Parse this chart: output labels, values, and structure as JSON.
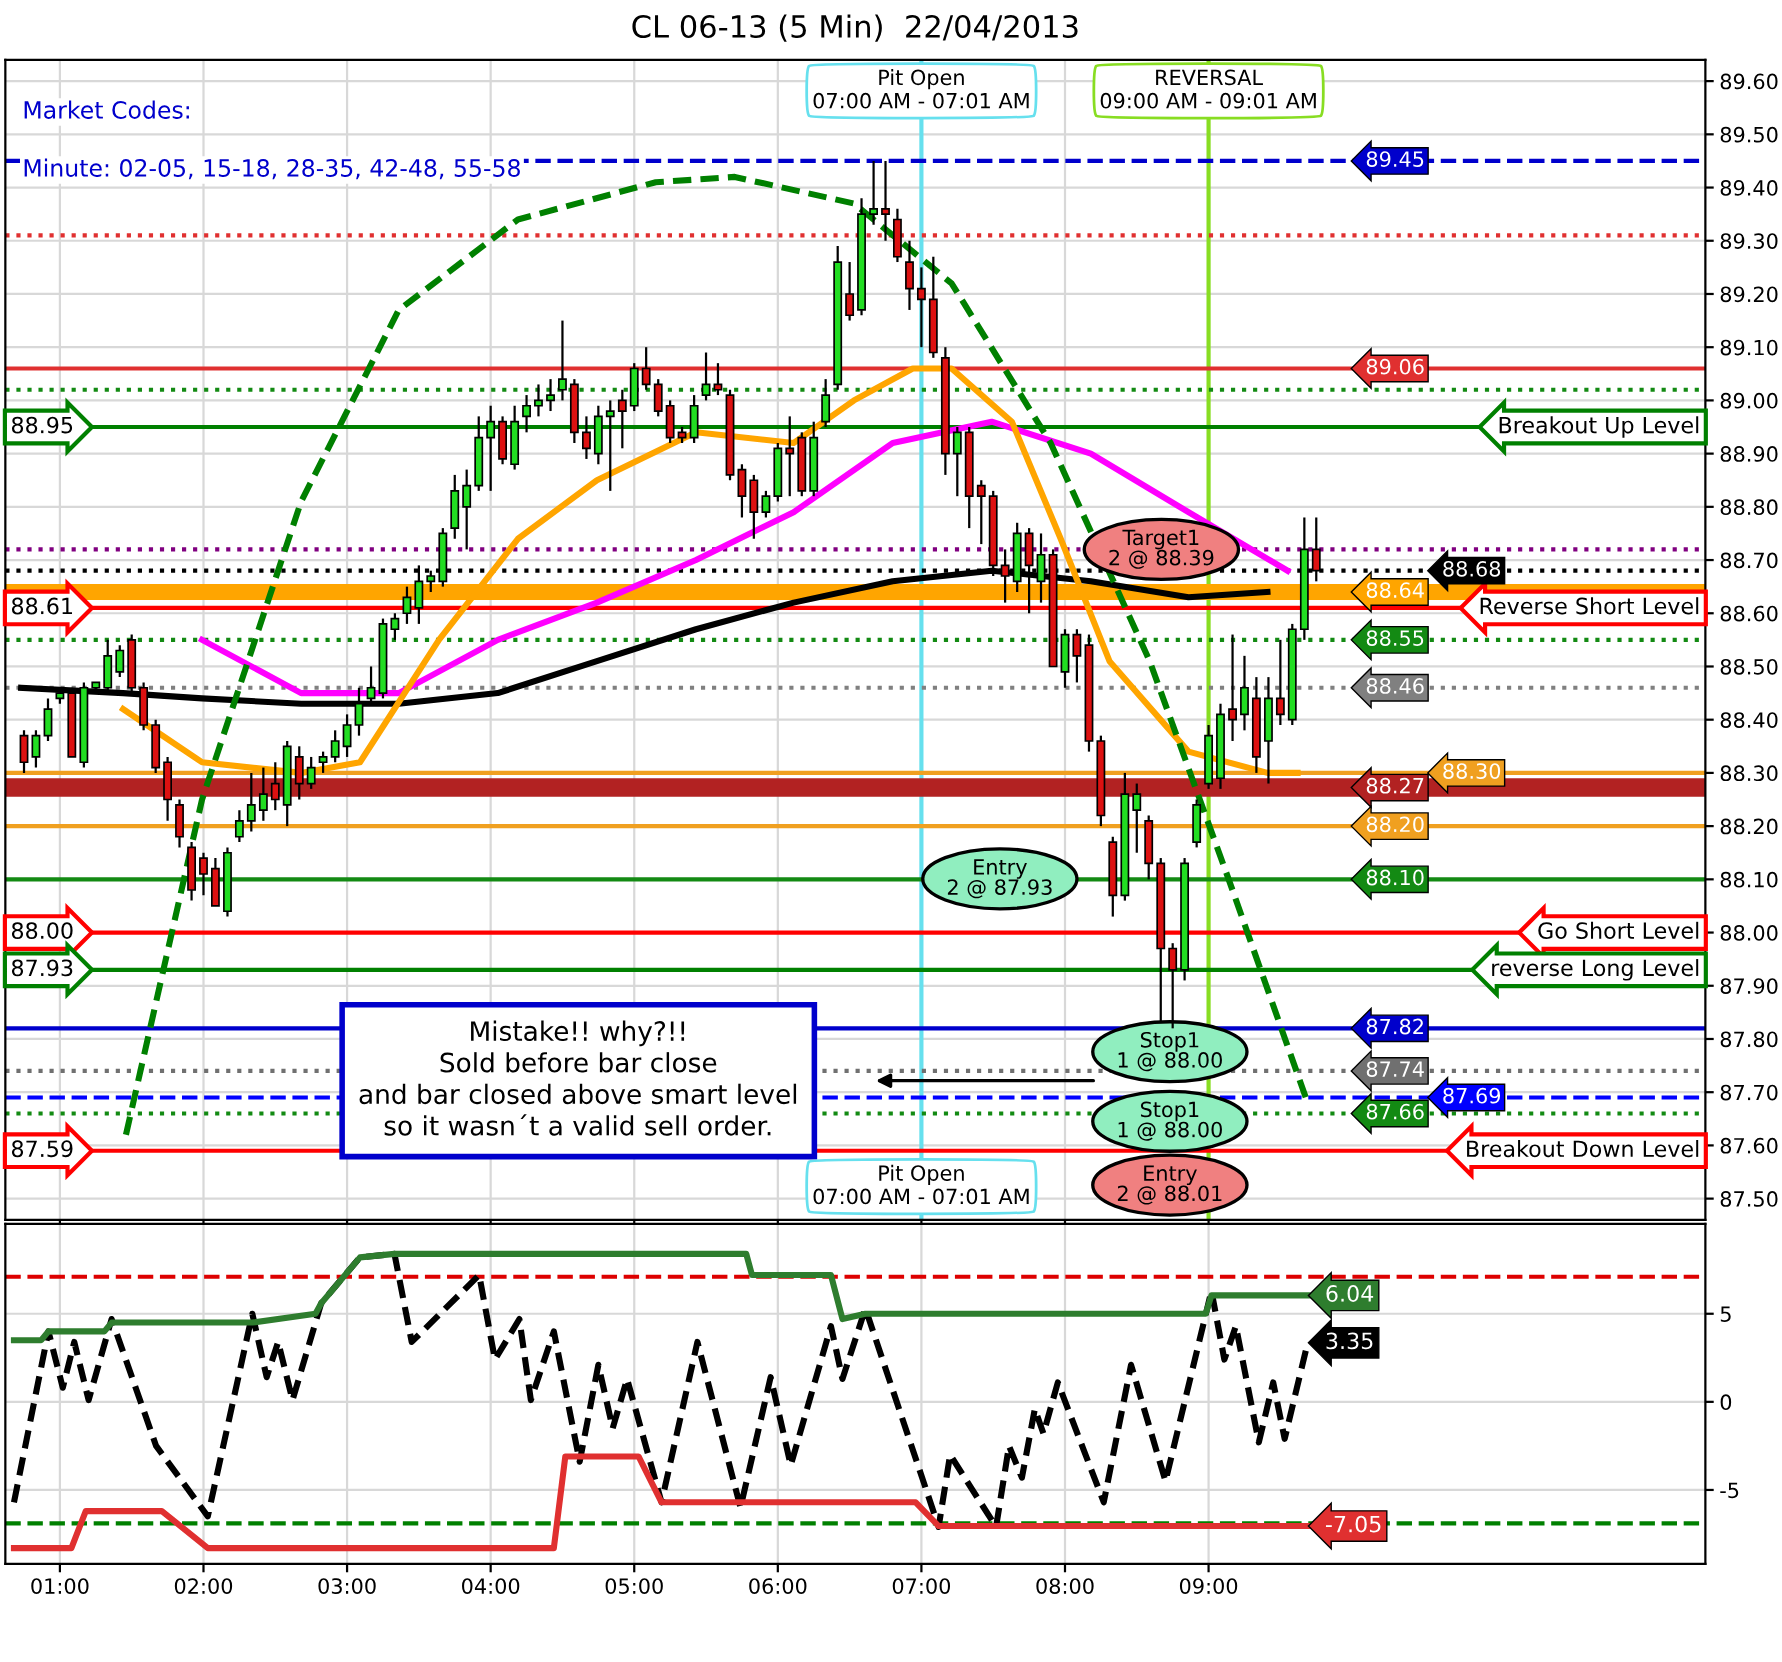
{
  "chart_data": [
    {
      "type": "candlestick",
      "title": "CL 06-13 (5 Min)  22/04/2013",
      "x": [
        0.75,
        0.833,
        0.917,
        1,
        1.083,
        1.167,
        1.25,
        1.333,
        1.417,
        1.5,
        1.583,
        1.667,
        1.75,
        1.833,
        1.917,
        2,
        2.083,
        2.167,
        2.25,
        2.333,
        2.417,
        2.5,
        2.583,
        2.667,
        2.75,
        2.833,
        2.917,
        3,
        3.083,
        3.167,
        3.25,
        3.333,
        3.417,
        3.5,
        3.583,
        3.667,
        3.75,
        3.833,
        3.917,
        4,
        4.083,
        4.167,
        4.25,
        4.333,
        4.417,
        4.5,
        4.583,
        4.667,
        4.75,
        4.833,
        4.917,
        5,
        5.083,
        5.167,
        5.25,
        5.333,
        5.417,
        5.5,
        5.583,
        5.667,
        5.75,
        5.833,
        5.917,
        6,
        6.083,
        6.167,
        6.25,
        6.333,
        6.417,
        6.5,
        6.583,
        6.667,
        6.75,
        6.833,
        6.917,
        7,
        7.083,
        7.167,
        7.25,
        7.333,
        7.417,
        7.5,
        7.583,
        7.667,
        7.75,
        7.833,
        7.917,
        8,
        8.083,
        8.167,
        8.25,
        8.333,
        8.417,
        8.5,
        8.583,
        8.667,
        8.75,
        8.833,
        8.917,
        9,
        9.083,
        9.167,
        9.25,
        9.333,
        9.417,
        9.5,
        9.583,
        9.667,
        9.75
      ],
      "ohlc": [
        [
          88.37,
          88.38,
          88.3,
          88.32
        ],
        [
          88.33,
          88.38,
          88.31,
          88.37
        ],
        [
          88.37,
          88.44,
          88.36,
          88.42
        ],
        [
          88.44,
          88.46,
          88.43,
          88.45
        ],
        [
          88.45,
          88.46,
          88.33,
          88.33
        ],
        [
          88.32,
          88.47,
          88.31,
          88.46
        ],
        [
          88.46,
          88.47,
          88.45,
          88.47
        ],
        [
          88.46,
          88.55,
          88.45,
          88.52
        ],
        [
          88.49,
          88.54,
          88.48,
          88.53
        ],
        [
          88.55,
          88.56,
          88.45,
          88.46
        ],
        [
          88.46,
          88.47,
          88.38,
          88.39
        ],
        [
          88.39,
          88.4,
          88.3,
          88.31
        ],
        [
          88.32,
          88.33,
          88.21,
          88.25
        ],
        [
          88.24,
          88.25,
          88.16,
          88.18
        ],
        [
          88.16,
          88.17,
          88.06,
          88.08
        ],
        [
          88.14,
          88.15,
          88.07,
          88.11
        ],
        [
          88.12,
          88.14,
          88.05,
          88.05
        ],
        [
          88.04,
          88.16,
          88.03,
          88.15
        ],
        [
          88.18,
          88.23,
          88.17,
          88.21
        ],
        [
          88.21,
          88.3,
          88.19,
          88.24
        ],
        [
          88.23,
          88.31,
          88.21,
          88.26
        ],
        [
          88.28,
          88.32,
          88.23,
          88.25
        ],
        [
          88.24,
          88.36,
          88.2,
          88.35
        ],
        [
          88.33,
          88.35,
          88.25,
          88.28
        ],
        [
          88.28,
          88.33,
          88.27,
          88.31
        ],
        [
          88.32,
          88.34,
          88.3,
          88.33
        ],
        [
          88.33,
          88.38,
          88.32,
          88.36
        ],
        [
          88.35,
          88.41,
          88.33,
          88.39
        ],
        [
          88.39,
          88.46,
          88.37,
          88.43
        ],
        [
          88.44,
          88.5,
          88.43,
          88.46
        ],
        [
          88.45,
          88.59,
          88.44,
          88.58
        ],
        [
          88.57,
          88.6,
          88.55,
          88.59
        ],
        [
          88.6,
          88.65,
          88.58,
          88.63
        ],
        [
          88.61,
          88.69,
          88.58,
          88.66
        ],
        [
          88.66,
          88.68,
          88.64,
          88.67
        ],
        [
          88.66,
          88.76,
          88.65,
          88.75
        ],
        [
          88.76,
          88.86,
          88.74,
          88.83
        ],
        [
          88.8,
          88.87,
          88.72,
          88.84
        ],
        [
          88.84,
          88.97,
          88.83,
          88.93
        ],
        [
          88.93,
          88.99,
          88.83,
          88.96
        ],
        [
          88.96,
          88.97,
          88.88,
          88.89
        ],
        [
          88.88,
          88.99,
          88.87,
          88.96
        ],
        [
          88.97,
          89.01,
          88.94,
          88.99
        ],
        [
          88.99,
          89.03,
          88.97,
          89.0
        ],
        [
          89.0,
          89.04,
          88.98,
          89.01
        ],
        [
          89.02,
          89.15,
          89.0,
          89.04
        ],
        [
          89.03,
          89.04,
          88.92,
          88.94
        ],
        [
          88.94,
          88.97,
          88.89,
          88.91
        ],
        [
          88.9,
          88.99,
          88.88,
          88.97
        ],
        [
          88.97,
          89.0,
          88.83,
          88.98
        ],
        [
          89.0,
          89.02,
          88.91,
          88.98
        ],
        [
          88.99,
          89.07,
          88.98,
          89.06
        ],
        [
          89.06,
          89.1,
          89.02,
          89.03
        ],
        [
          89.03,
          89.04,
          88.97,
          88.98
        ],
        [
          88.99,
          89.0,
          88.92,
          88.93
        ],
        [
          88.94,
          88.95,
          88.92,
          88.93
        ],
        [
          88.93,
          89.01,
          88.92,
          88.99
        ],
        [
          89.01,
          89.09,
          89.0,
          89.03
        ],
        [
          89.03,
          89.07,
          89.01,
          89.02
        ],
        [
          89.01,
          89.02,
          88.85,
          88.86
        ],
        [
          88.87,
          88.88,
          88.78,
          88.82
        ],
        [
          88.85,
          88.86,
          88.74,
          88.79
        ],
        [
          88.79,
          88.83,
          88.78,
          88.82
        ],
        [
          88.82,
          88.92,
          88.81,
          88.91
        ],
        [
          88.91,
          88.97,
          88.82,
          88.9
        ],
        [
          88.93,
          88.94,
          88.82,
          88.83
        ],
        [
          88.83,
          88.96,
          88.82,
          88.93
        ],
        [
          88.96,
          89.04,
          88.95,
          89.01
        ],
        [
          89.03,
          89.29,
          89.02,
          89.26
        ],
        [
          89.2,
          89.26,
          89.15,
          89.16
        ],
        [
          89.17,
          89.38,
          89.16,
          89.35
        ],
        [
          89.35,
          89.45,
          89.33,
          89.36
        ],
        [
          89.36,
          89.45,
          89.3,
          89.35
        ],
        [
          89.34,
          89.36,
          89.26,
          89.27
        ],
        [
          89.26,
          89.3,
          89.17,
          89.21
        ],
        [
          89.21,
          89.25,
          89.1,
          89.19
        ],
        [
          89.19,
          89.27,
          89.08,
          89.09
        ],
        [
          89.08,
          89.1,
          88.86,
          88.9
        ],
        [
          88.9,
          88.95,
          88.82,
          88.94
        ],
        [
          88.94,
          88.95,
          88.76,
          88.82
        ],
        [
          88.84,
          88.85,
          88.73,
          88.82
        ],
        [
          88.82,
          88.83,
          88.67,
          88.69
        ],
        [
          88.69,
          88.72,
          88.62,
          88.67
        ],
        [
          88.66,
          88.77,
          88.64,
          88.75
        ],
        [
          88.75,
          88.76,
          88.6,
          88.69
        ],
        [
          88.66,
          88.75,
          88.62,
          88.71
        ],
        [
          88.71,
          88.72,
          88.5,
          88.5
        ],
        [
          88.49,
          88.57,
          88.46,
          88.56
        ],
        [
          88.56,
          88.57,
          88.47,
          88.52
        ],
        [
          88.54,
          88.56,
          88.34,
          88.36
        ],
        [
          88.36,
          88.37,
          88.2,
          88.22
        ],
        [
          88.17,
          88.18,
          88.03,
          88.07
        ],
        [
          88.07,
          88.3,
          88.06,
          88.26
        ],
        [
          88.23,
          88.28,
          88.15,
          88.26
        ],
        [
          88.21,
          88.22,
          88.1,
          88.13
        ],
        [
          88.13,
          88.14,
          87.83,
          87.97
        ],
        [
          87.97,
          87.98,
          87.82,
          87.93
        ],
        [
          87.93,
          88.14,
          87.91,
          88.13
        ],
        [
          88.17,
          88.25,
          88.16,
          88.24
        ],
        [
          88.28,
          88.39,
          88.27,
          88.37
        ],
        [
          88.29,
          88.43,
          88.27,
          88.41
        ],
        [
          88.42,
          88.56,
          88.36,
          88.4
        ],
        [
          88.41,
          88.52,
          88.38,
          88.46
        ],
        [
          88.44,
          88.48,
          88.3,
          88.33
        ],
        [
          88.36,
          88.48,
          88.28,
          88.44
        ],
        [
          88.44,
          88.55,
          88.39,
          88.41
        ],
        [
          88.4,
          88.58,
          88.39,
          88.57
        ],
        [
          88.57,
          88.78,
          88.55,
          88.72
        ],
        [
          88.72,
          88.78,
          88.66,
          88.68
        ]
      ],
      "series": [
        {
          "type": "line",
          "color": "#000000",
          "line_style": "solid",
          "x": [
            0.73,
            1.44,
            1.99,
            2.68,
            3.36,
            4.05,
            4.74,
            5.43,
            6.11,
            6.8,
            7.49,
            8.18,
            8.86,
            9.41
          ],
          "values": [
            88.46,
            88.45,
            88.44,
            88.43,
            88.43,
            88.45,
            88.51,
            88.57,
            88.62,
            88.66,
            88.68,
            88.66,
            88.63,
            88.64
          ]
        },
        {
          "type": "line",
          "color": "#ff00ff",
          "line_style": "solid",
          "x": [
            1.99,
            2.68,
            3.36,
            4.05,
            4.74,
            5.43,
            6.11,
            6.8,
            7.49,
            8.18,
            8.86,
            9.55
          ],
          "values": [
            88.55,
            88.45,
            88.45,
            88.55,
            88.62,
            88.7,
            88.79,
            88.92,
            88.96,
            88.9,
            88.79,
            88.68
          ]
        },
        {
          "type": "line",
          "color": "#ffa500",
          "line_style": "solid",
          "x": [
            1.44,
            1.99,
            2.68,
            3.09,
            3.64,
            4.19,
            4.74,
            5.43,
            6.11,
            6.53,
            6.94,
            7.21,
            7.63,
            7.97,
            8.31,
            8.86,
            9.41,
            9.62
          ],
          "values": [
            88.42,
            88.32,
            88.3,
            88.32,
            88.55,
            88.74,
            88.85,
            88.94,
            88.92,
            89.0,
            89.06,
            89.06,
            88.96,
            88.74,
            88.51,
            88.34,
            88.3,
            88.3
          ]
        },
        {
          "type": "line",
          "color": "#008000",
          "line_style": "dashed",
          "x": [
            1.46,
            1.99,
            2.68,
            3.36,
            4.19,
            5.15,
            5.7,
            6.53,
            7.21,
            7.9,
            8.59,
            9.14,
            9.69
          ],
          "values": [
            87.62,
            88.25,
            88.81,
            89.17,
            89.34,
            89.41,
            89.42,
            89.37,
            89.22,
            88.92,
            88.51,
            88.1,
            87.68
          ]
        }
      ],
      "xlim": [
        0.62,
        12.46
      ],
      "xticks": [
        {
          "value": 1,
          "label": null
        },
        {
          "value": 2,
          "label": null
        },
        {
          "value": 3,
          "label": null
        },
        {
          "value": 4,
          "label": null
        },
        {
          "value": 5,
          "label": null
        },
        {
          "value": 6,
          "label": null
        },
        {
          "value": 7,
          "label": null
        },
        {
          "value": 8,
          "label": null
        },
        {
          "value": 9,
          "label": null
        }
      ],
      "ylim": [
        87.46,
        89.64
      ],
      "yticks": [
        {
          "value": 87.5,
          "label": "87.50"
        },
        {
          "value": 87.6,
          "label": "87.60"
        },
        {
          "value": 87.7,
          "label": "87.70"
        },
        {
          "value": 87.8,
          "label": "87.80"
        },
        {
          "value": 87.9,
          "label": "87.90"
        },
        {
          "value": 88.0,
          "label": "88.00"
        },
        {
          "value": 88.1,
          "label": "88.10"
        },
        {
          "value": 88.2,
          "label": "88.20"
        },
        {
          "value": 88.3,
          "label": "88.30"
        },
        {
          "value": 88.4,
          "label": "88.40"
        },
        {
          "value": 88.5,
          "label": "88.50"
        },
        {
          "value": 88.6,
          "label": "88.60"
        },
        {
          "value": 88.7,
          "label": "88.70"
        },
        {
          "value": 88.8,
          "label": "88.80"
        },
        {
          "value": 88.9,
          "label": "88.90"
        },
        {
          "value": 89.0,
          "label": "89.00"
        },
        {
          "value": 89.1,
          "label": "89.10"
        },
        {
          "value": 89.2,
          "label": "89.20"
        },
        {
          "value": 89.3,
          "label": "89.30"
        },
        {
          "value": 89.4,
          "label": "89.40"
        },
        {
          "value": 89.5,
          "label": "89.50"
        },
        {
          "value": 89.6,
          "label": "89.60"
        }
      ],
      "grid": true,
      "tick_labels": "y",
      "ref_lines": [
        {
          "axis": "y",
          "value": 88.95,
          "label": "Breakout Up Level",
          "color": "#008000",
          "line_style": "solid"
        },
        {
          "axis": "y",
          "value": 88.61,
          "label": "Reverse Short Level",
          "color": "#ff0000",
          "line_style": "solid"
        },
        {
          "axis": "y",
          "value": 88.0,
          "label": "Go Short Level",
          "color": "#ff0000",
          "line_style": "solid"
        },
        {
          "axis": "y",
          "value": 87.93,
          "label": "reverse Long Level",
          "color": "#008000",
          "line_style": "solid"
        },
        {
          "axis": "y",
          "value": 87.59,
          "label": "Breakout Down Level",
          "color": "#ff0000",
          "line_style": "solid"
        },
        {
          "axis": "y",
          "value": 89.45,
          "label": "89.45",
          "color": "#0000cc",
          "line_style": "dashed"
        },
        {
          "axis": "y",
          "value": 89.06,
          "label": "89.06",
          "color": "#e03030",
          "line_style": "solid"
        },
        {
          "axis": "y",
          "value": 88.68,
          "label": "88.68",
          "color": "#000000",
          "line_style": "dotted"
        },
        {
          "axis": "y",
          "value": 88.55,
          "label": "88.55",
          "color": "#138a13",
          "line_style": "dotted"
        },
        {
          "axis": "y",
          "value": 88.46,
          "label": "88.46",
          "color": "#808080",
          "line_style": "dotted"
        },
        {
          "axis": "y",
          "value": 88.3,
          "label": "88.30",
          "color": "#f0a020",
          "line_style": "solid"
        },
        {
          "axis": "y",
          "value": 88.2,
          "label": "88.20",
          "color": "#f0a020",
          "line_style": "solid"
        },
        {
          "axis": "y",
          "value": 88.1,
          "label": "88.10",
          "color": "#138a13",
          "line_style": "solid"
        },
        {
          "axis": "y",
          "value": 87.82,
          "label": "87.82",
          "color": "#0000cc",
          "line_style": "solid"
        },
        {
          "axis": "y",
          "value": 87.74,
          "label": "87.74",
          "color": "#707070",
          "line_style": "dotted"
        },
        {
          "axis": "y",
          "value": 87.69,
          "label": "87.69",
          "color": "#0000ff",
          "line_style": "dashed"
        },
        {
          "axis": "y",
          "value": 87.66,
          "label": "87.66",
          "color": "#138a13",
          "line_style": "dotted"
        },
        {
          "axis": "y",
          "value": 89.31,
          "color": "#e03030",
          "line_style": "dotted"
        },
        {
          "axis": "y",
          "value": 89.02,
          "color": "#138a13",
          "line_style": "dotted"
        },
        {
          "axis": "y",
          "value": 88.72,
          "color": "#800080",
          "line_style": "dotted"
        },
        {
          "axis": "x",
          "value": 7.0,
          "label": "Pit Open\n07:00 AM - 07:01 AM",
          "color": "#66e0ee",
          "line_style": "solid"
        },
        {
          "axis": "x",
          "value": 9.0,
          "label": "REVERSAL\n09:00 AM - 09:01 AM",
          "color": "#88dd22",
          "line_style": "solid"
        }
      ],
      "bands": [
        {
          "axis": "y",
          "from": 88.625,
          "to": 88.655,
          "label": "88.64",
          "color": "#ffa500"
        },
        {
          "axis": "y",
          "from": 88.255,
          "to": 88.29,
          "label": "88.27",
          "color": "#b22222"
        }
      ],
      "annotations": [
        "Market Codes:",
        "Minute: 02-05, 15-18, 28-35, 42-48, 55-58",
        "Mistake!! why?!!\nSold before bar close\nand bar closed above smart level\nso it wasn´t a valid sell order.",
        "Target1\n2 @ 88.39",
        "Entry\n2 @ 87.93",
        "Stop1\n1 @ 88.00",
        "Stop1\n1 @ 88.00",
        "Entry\n2 @ 88.01",
        "Pit Open\n07:00 AM - 07:01 AM",
        "88.95",
        "88.61",
        "88.00",
        "87.93",
        "87.59"
      ]
    },
    {
      "type": "line",
      "series": [
        {
          "type": "line",
          "color": "#000000",
          "line_style": "dashed",
          "x": [
            0.68,
            0.92,
            1.02,
            1.1,
            1.2,
            1.36,
            1.67,
            2.03,
            2.34,
            2.44,
            2.52,
            2.62,
            2.82,
            3.09,
            3.33,
            3.45,
            3.92,
            4.03,
            4.2,
            4.28,
            4.44,
            4.62,
            4.75,
            4.85,
            4.95,
            5.19,
            5.44,
            5.74,
            5.95,
            6.09,
            6.37,
            6.45,
            6.61,
            7.12,
            7.2,
            7.52,
            7.61,
            7.7,
            7.79,
            7.85,
            7.95,
            8.27,
            8.46,
            8.7,
            9.02,
            9.11,
            9.19,
            9.35,
            9.45,
            9.53,
            9.69
          ],
          "values": [
            -5.7,
            4.0,
            0.8,
            3.4,
            0.1,
            4.7,
            -2.5,
            -6.5,
            5.0,
            1.4,
            3.4,
            0.1,
            5.6,
            8.2,
            8.4,
            3.4,
            7.2,
            2.4,
            4.7,
            0.1,
            4.0,
            -3.4,
            2.1,
            -1.5,
            1.3,
            -5.7,
            3.4,
            -6.0,
            1.4,
            -3.6,
            4.3,
            1.3,
            5.3,
            -7.1,
            -3.0,
            -7.1,
            -2.5,
            -4.3,
            -0.4,
            -1.8,
            1.1,
            -5.7,
            2.1,
            -4.5,
            6.3,
            2.4,
            4.3,
            -2.3,
            1.1,
            -2.1,
            3.35
          ],
          "value_labels": [
            null,
            null,
            null,
            null,
            null,
            null,
            null,
            null,
            null,
            null,
            null,
            null,
            null,
            null,
            null,
            null,
            null,
            null,
            null,
            null,
            null,
            null,
            null,
            null,
            null,
            null,
            null,
            null,
            null,
            null,
            null,
            null,
            null,
            null,
            null,
            null,
            null,
            null,
            null,
            null,
            null,
            null,
            null,
            null,
            null,
            null,
            null,
            null,
            null,
            null,
            "3.35"
          ]
        },
        {
          "type": "line",
          "color": "#2e7d2e",
          "line_style": "solid",
          "x": [
            0.68,
            0.87,
            0.92,
            1.31,
            1.36,
            2.34,
            2.78,
            2.82,
            3.09,
            3.33,
            5.78,
            5.82,
            6.37,
            6.45,
            6.61,
            8.98,
            9.02,
            9.69
          ],
          "values": [
            3.5,
            3.5,
            4.0,
            4.0,
            4.5,
            4.5,
            5.0,
            5.6,
            8.2,
            8.4,
            8.4,
            7.2,
            7.2,
            4.7,
            5.0,
            5.0,
            6.04,
            6.04
          ],
          "value_labels": [
            null,
            null,
            null,
            null,
            null,
            null,
            null,
            null,
            null,
            null,
            null,
            null,
            null,
            null,
            null,
            null,
            null,
            "6.04"
          ]
        },
        {
          "type": "line",
          "color": "#e03030",
          "line_style": "solid",
          "x": [
            0.68,
            1.08,
            1.18,
            1.71,
            2.03,
            4.44,
            4.52,
            5.03,
            5.19,
            6.96,
            7.12,
            9.69
          ],
          "values": [
            -8.3,
            -8.3,
            -6.2,
            -6.2,
            -8.3,
            -8.3,
            -3.1,
            -3.1,
            -5.7,
            -5.7,
            -7.05,
            -7.05
          ],
          "value_labels": [
            null,
            null,
            null,
            null,
            null,
            null,
            null,
            null,
            null,
            null,
            null,
            "-7.05"
          ]
        }
      ],
      "xlim": [
        0.62,
        12.46
      ],
      "xticks": [
        {
          "value": 1,
          "label": "01:00"
        },
        {
          "value": 2,
          "label": "02:00"
        },
        {
          "value": 3,
          "label": "03:00"
        },
        {
          "value": 4,
          "label": "04:00"
        },
        {
          "value": 5,
          "label": "05:00"
        },
        {
          "value": 6,
          "label": "06:00"
        },
        {
          "value": 7,
          "label": "07:00"
        },
        {
          "value": 8,
          "label": "08:00"
        },
        {
          "value": 9,
          "label": "09:00"
        }
      ],
      "ylim": [
        -9.2,
        10.1
      ],
      "yticks": [
        -5,
        0,
        5
      ],
      "grid": true,
      "ref_lines": [
        {
          "axis": "y",
          "value": 7.1,
          "color": "#dd0000",
          "line_style": "dashed"
        },
        {
          "axis": "y",
          "value": -6.9,
          "color": "#008000",
          "line_style": "dashed"
        }
      ]
    }
  ]
}
